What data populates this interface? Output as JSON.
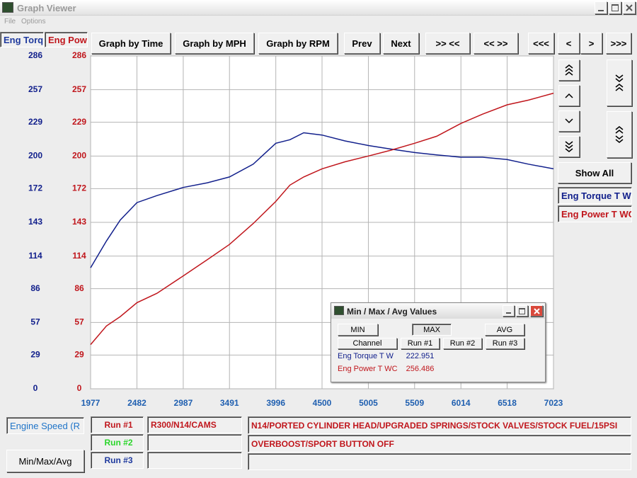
{
  "window": {
    "title": "Graph Viewer",
    "menu": [
      "File",
      "Options"
    ]
  },
  "toolbar": [
    "Graph by Time",
    "Graph by MPH",
    "Graph by RPM",
    "Prev",
    "Next",
    ">> <<",
    "<< >>",
    "<<<",
    "<",
    ">",
    ">>>"
  ],
  "side": {
    "show_all": "Show All"
  },
  "chart_data": {
    "type": "line",
    "x": [
      1977,
      2150,
      2300,
      2482,
      2700,
      2987,
      3250,
      3491,
      3750,
      3996,
      4150,
      4300,
      4500,
      4750,
      5005,
      5250,
      5509,
      5750,
      6014,
      6250,
      6518,
      6750,
      7023
    ],
    "series": [
      {
        "name": "Eng Torque T W",
        "color": "#12208c",
        "values": [
          104,
          127,
          145,
          160,
          166,
          173,
          177,
          182,
          193,
          211,
          214,
          220,
          218,
          213,
          209,
          206,
          203,
          201,
          199,
          199,
          197,
          193,
          189
        ]
      },
      {
        "name": "Eng Power T WC",
        "color": "#c0161c",
        "axis": "y2",
        "values": [
          38,
          54,
          62,
          74,
          82,
          97,
          111,
          124,
          142,
          161,
          175,
          182,
          189,
          195,
          200,
          205,
          211,
          217,
          228,
          236,
          244,
          248,
          254
        ]
      }
    ],
    "xlim": [
      1977,
      7023
    ],
    "xticks": [
      1977,
      2482,
      2987,
      3491,
      3996,
      4500,
      5005,
      5509,
      6014,
      6518,
      7023
    ],
    "ylim": [
      0,
      286
    ],
    "yticks": [
      0,
      29,
      57,
      86,
      114,
      143,
      172,
      200,
      229,
      257,
      286
    ],
    "y2lim": [
      0,
      286
    ],
    "y2ticks": [
      0,
      29,
      57,
      86,
      114,
      143,
      172,
      200,
      229,
      257,
      286
    ],
    "grid": true
  },
  "dialog": {
    "title": "Min / Max / Avg Values",
    "buttons": [
      "MIN",
      "MAX",
      "AVG"
    ],
    "columns": [
      "Channel",
      "Run #1",
      "Run #2",
      "Run #3"
    ],
    "values": [
      222.951,
      256.486
    ]
  },
  "footer": {
    "x_channel": "Engine Speed (R",
    "runs": [
      "Run #1",
      "Run #2",
      "Run #3"
    ],
    "run_names": [
      "R300/N14/CAMS"
    ],
    "notes": [
      "N14/PORTED CYLINDER HEAD/UPGRADED SPRINGS/STOCK VALVES/STOCK FUEL/15PSI",
      "OVERBOOST/SPORT BUTTON OFF"
    ],
    "button": "Min/Max/Avg"
  }
}
